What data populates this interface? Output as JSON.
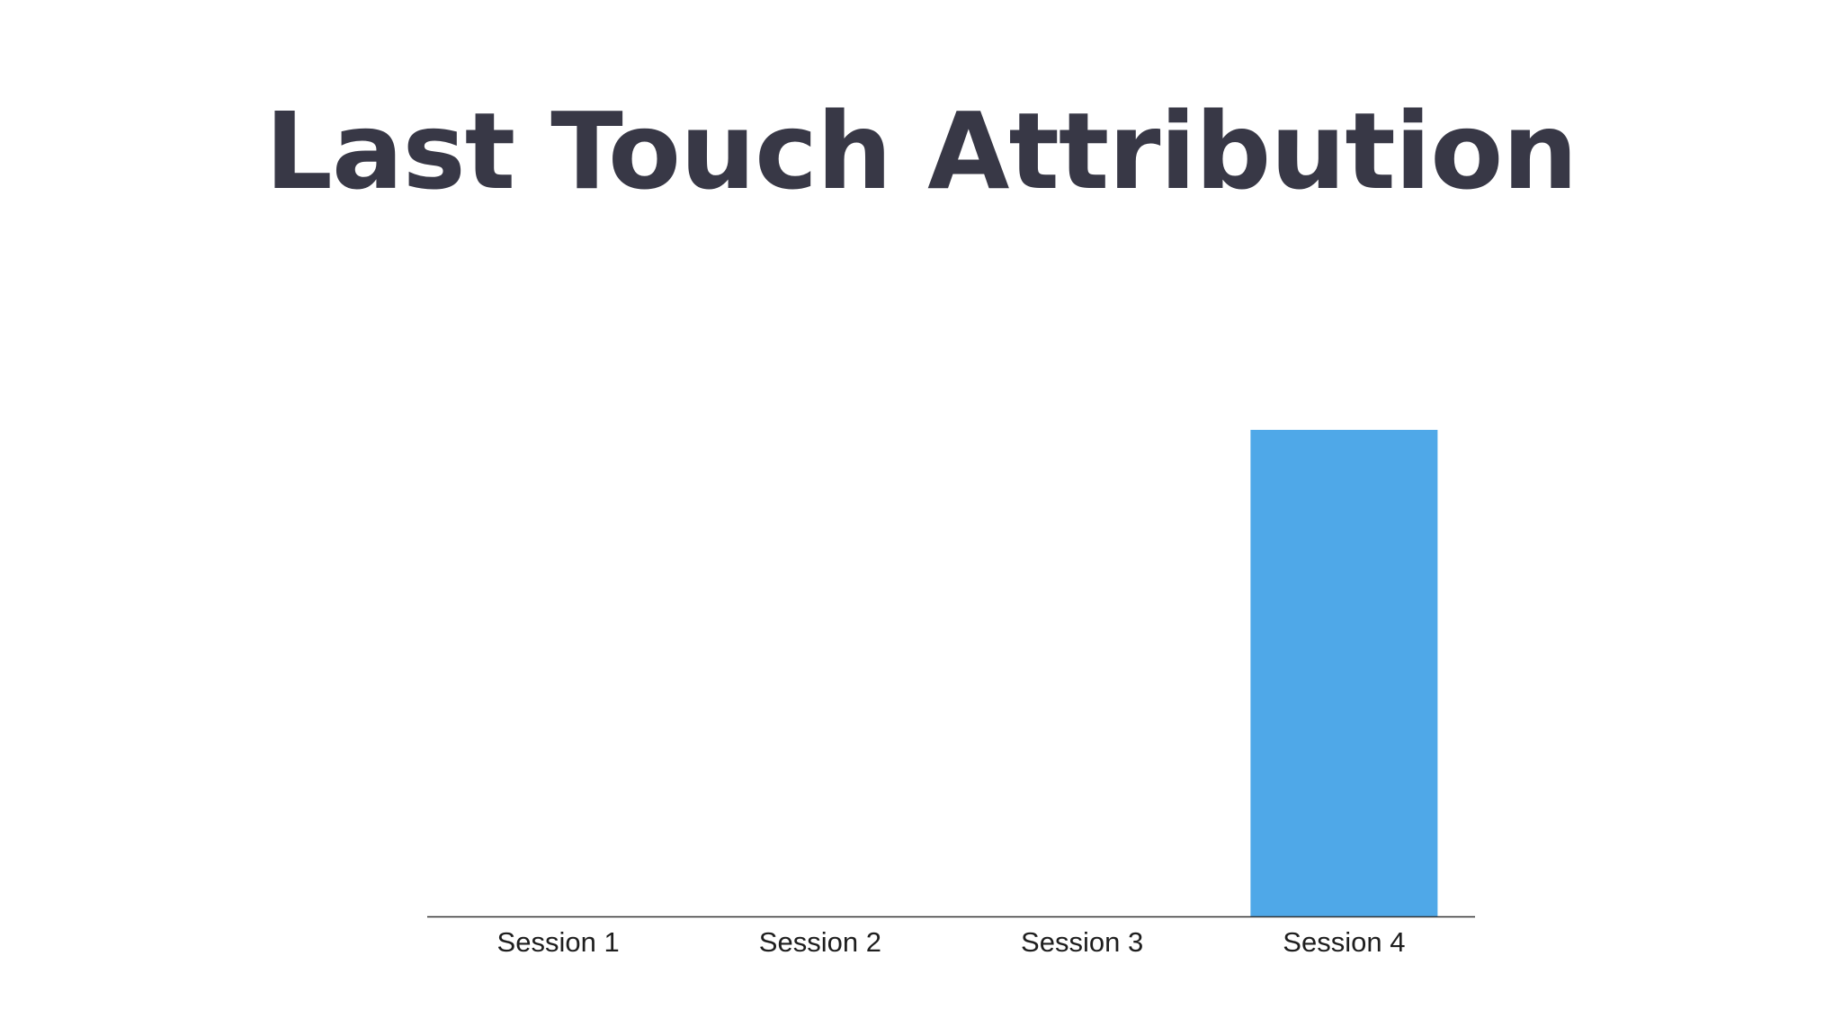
{
  "slide": {
    "title": "Last Touch Attribution"
  },
  "colors": {
    "bar": "#4FA8E8",
    "axis": "#333333",
    "title": "#383846",
    "background": "#ffffff"
  },
  "chart_data": {
    "type": "bar",
    "title": "Last Touch Attribution",
    "categories": [
      "Session 1",
      "Session 2",
      "Session 3",
      "Session 4"
    ],
    "values": [
      0,
      0,
      0,
      100
    ],
    "ylim": [
      0,
      100
    ],
    "xlabel": "",
    "ylabel": "",
    "grid": false,
    "legend": "none"
  }
}
